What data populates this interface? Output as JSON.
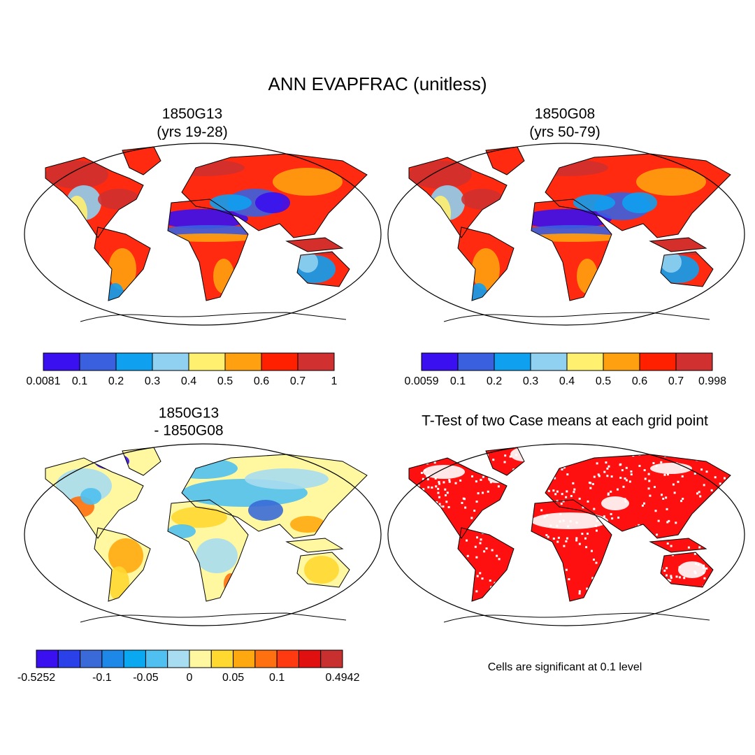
{
  "title": "ANN EVAPFRAC (unitless)",
  "panels": [
    {
      "title": [
        "1850G13",
        "(yrs 19-28)"
      ],
      "colorbar": {
        "colors": [
          "#3a10f0",
          "#3a60e0",
          "#10a0f0",
          "#90d0f0",
          "#fff070",
          "#ffa010",
          "#ff2000",
          "#d03030"
        ],
        "labels": [
          "0.0081",
          "0.1",
          "0.2",
          "0.3",
          "0.4",
          "0.5",
          "0.6",
          "0.7",
          "1"
        ]
      }
    },
    {
      "title": [
        "1850G08",
        "(yrs 50-79)"
      ],
      "colorbar": {
        "colors": [
          "#3a10f0",
          "#3a60e0",
          "#10a0f0",
          "#90d0f0",
          "#fff070",
          "#ffa010",
          "#ff2000",
          "#d03030"
        ],
        "labels": [
          "0.0059",
          "0.1",
          "0.2",
          "0.3",
          "0.4",
          "0.5",
          "0.6",
          "0.7",
          "0.998"
        ]
      }
    },
    {
      "title": [
        "1850G13",
        "- 1850G08"
      ],
      "colorbar": {
        "colors": [
          "#3a10f0",
          "#2a40e8",
          "#3a6ad8",
          "#1e88e8",
          "#0aa8f0",
          "#50c0f0",
          "#a8dcf0",
          "#fff8a0",
          "#ffd830",
          "#ffa810",
          "#ff7010",
          "#ff3a10",
          "#e01010",
          "#c83030"
        ],
        "labels": [
          "-0.5252",
          null,
          null,
          "-0.1",
          null,
          "-0.05",
          null,
          "0",
          null,
          "0.05",
          null,
          "0.1",
          null,
          null,
          "0.4942"
        ]
      }
    },
    {
      "title": [
        "T-Test of two Case means at each grid point"
      ],
      "note": "Cells are significant at 0.1 level"
    }
  ]
}
